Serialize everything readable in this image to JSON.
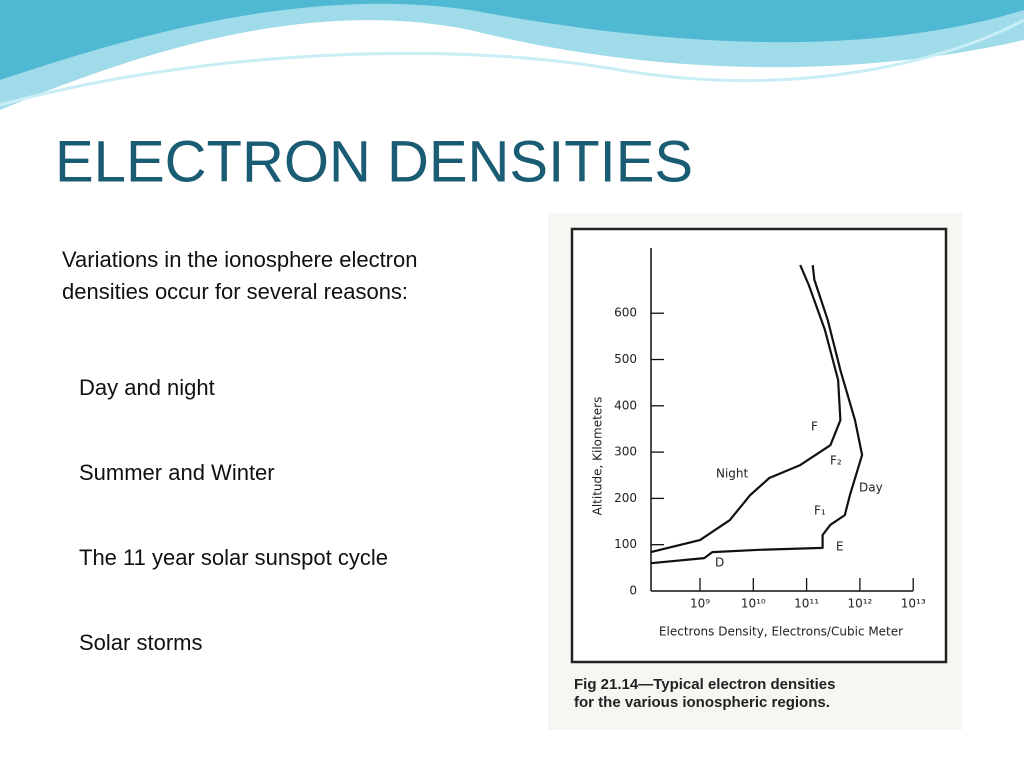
{
  "slide": {
    "title": "ELECTRON  DENSITIES",
    "intro": [
      "Variations  in the ionosphere electron",
      "densities occur  for several reasons:"
    ],
    "bullets": [
      "Day and night",
      "Summer and Winter",
      "The 11 year solar sunspot cycle",
      "Solar storms"
    ]
  },
  "chart_data": {
    "type": "line",
    "ylabel": "Altitude, Kilometers",
    "xlabel": "Electrons Density, Electrons/Cubic Meter",
    "caption": [
      "Fig 21.14—Typical electron densities",
      "for the various ionospheric regions."
    ],
    "xscale": "log",
    "xlim": [
      100000000,
      10000000000000
    ],
    "xticks": [
      {
        "value": 1000000000,
        "label": "10⁹"
      },
      {
        "value": 10000000000,
        "label": "10¹⁰"
      },
      {
        "value": 100000000000,
        "label": "10¹¹"
      },
      {
        "value": 1000000000000,
        "label": "10¹²"
      },
      {
        "value": 10000000000000,
        "label": "10¹³"
      }
    ],
    "ylim": [
      0,
      740
    ],
    "yticks": [
      0,
      100,
      200,
      300,
      400,
      500,
      600
    ],
    "series": [
      {
        "name": "Night",
        "color": "#111111",
        "x": [
          120000000,
          1000000000,
          3600000000,
          8700000000,
          20000000000,
          76000000000,
          280000000000,
          430000000000,
          390000000000,
          220000000000,
          110000000000,
          76000000000
        ],
        "values": [
          84,
          110,
          153,
          207,
          244,
          272,
          315,
          369,
          456,
          564,
          661,
          704
        ]
      },
      {
        "name": "Day",
        "color": "#111111",
        "x": [
          120000000,
          1200000000,
          1700000000,
          13000000000,
          200000000000,
          200000000000,
          280000000000,
          520000000000,
          650000000000,
          1100000000000,
          810000000000,
          430000000000,
          250000000000,
          140000000000,
          130000000000
        ],
        "values": [
          60,
          71,
          84,
          89,
          93,
          121,
          143,
          164,
          207,
          294,
          369,
          477,
          585,
          672,
          704
        ]
      }
    ],
    "annotations": [
      "F",
      "F₂",
      "F₁",
      "E",
      "D"
    ]
  }
}
